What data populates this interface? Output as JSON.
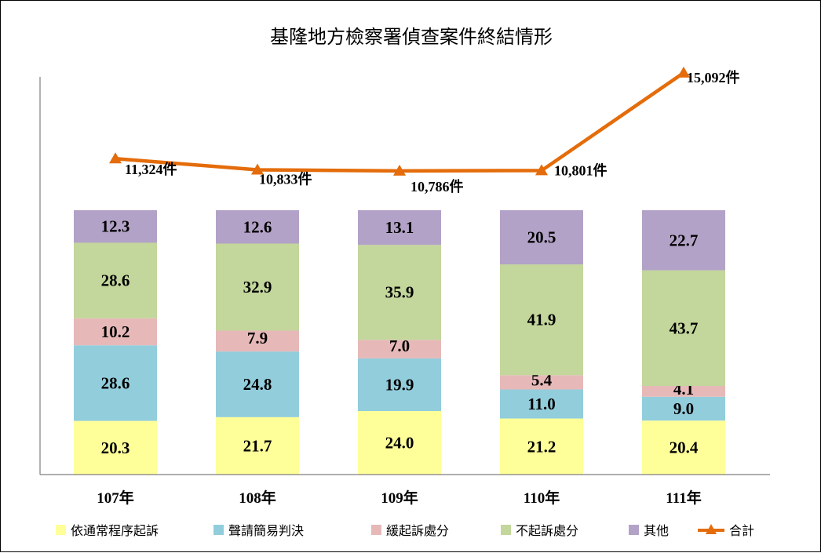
{
  "chart_data": {
    "type": "bar",
    "stacked": true,
    "title": "基隆地方檢察署偵查案件終結情形",
    "categories": [
      "107年",
      "108年",
      "109年",
      "110年",
      "111年"
    ],
    "series": [
      {
        "name": "依通常程序起訴",
        "color": "#FFFF99",
        "values": [
          20.3,
          21.7,
          24.0,
          21.2,
          20.4
        ],
        "labels": [
          "20.3",
          "21.7",
          "24.0",
          "21.2",
          "20.4"
        ]
      },
      {
        "name": "聲請簡易判決",
        "color": "#92CDDC",
        "values": [
          28.6,
          24.8,
          19.9,
          11.0,
          9.0
        ],
        "labels": [
          "28.6",
          "24.8",
          "19.9",
          "11.0",
          "9.0"
        ]
      },
      {
        "name": "緩起訴處分",
        "color": "#E6B9B8",
        "values": [
          10.2,
          7.9,
          7.0,
          5.4,
          4.1
        ],
        "labels": [
          "10.2",
          "7.9",
          "7.0",
          "5.4",
          "4.1"
        ]
      },
      {
        "name": "不起訴處分",
        "color": "#C3D69B",
        "values": [
          28.6,
          32.9,
          35.9,
          41.9,
          43.7
        ],
        "labels": [
          "28.6",
          "32.9",
          "35.9",
          "41.9",
          "43.7"
        ]
      },
      {
        "name": "其他",
        "color": "#B3A2C7",
        "values": [
          12.3,
          12.6,
          13.1,
          20.5,
          22.7
        ],
        "labels": [
          "12.3",
          "12.6",
          "13.1",
          "20.5",
          "22.7"
        ]
      }
    ],
    "total": {
      "name": "合計",
      "type": "line",
      "color": "#E46C0A",
      "values": [
        11324,
        10833,
        10786,
        10801,
        15092
      ],
      "labels": [
        "11,324件",
        "10,833件",
        "10,786件",
        "10,801件",
        "15,092件"
      ]
    },
    "grid": false,
    "legend_position": "bottom"
  }
}
